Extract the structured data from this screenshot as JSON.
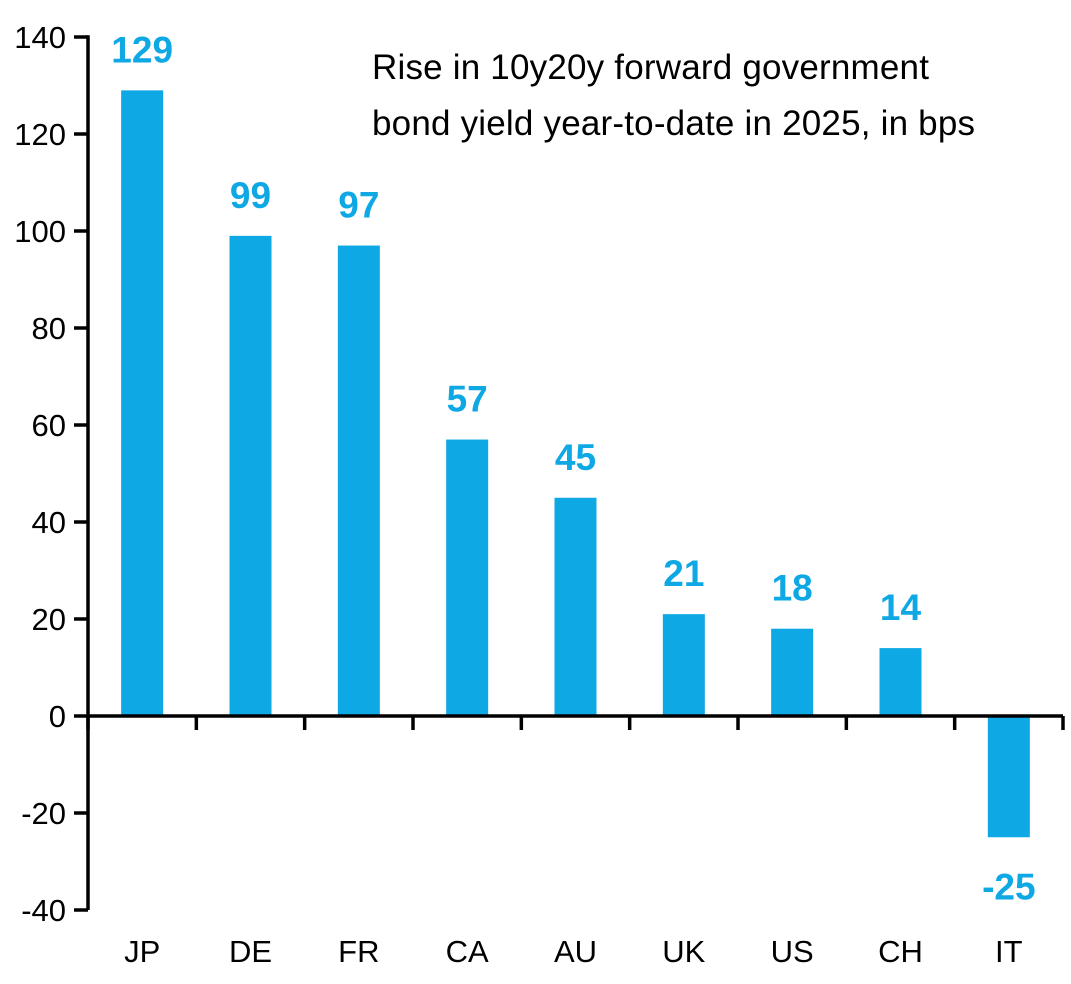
{
  "chart_data": {
    "type": "bar",
    "title": "Rise in 10y20y forward government bond yield year-to-date in 2025, in bps",
    "title_lines": [
      "Rise in 10y20y forward government",
      "bond yield year-to-date in 2025, in bps"
    ],
    "categories": [
      "JP",
      "DE",
      "FR",
      "CA",
      "AU",
      "UK",
      "US",
      "CH",
      "IT"
    ],
    "values": [
      129,
      99,
      97,
      57,
      45,
      21,
      18,
      14,
      -25
    ],
    "value_labels": [
      "129",
      "99",
      "97",
      "57",
      "45",
      "21",
      "18",
      "14",
      "-25"
    ],
    "xlabel": "",
    "ylabel": "",
    "ylim": [
      -40,
      140
    ],
    "yticks": [
      140,
      120,
      100,
      80,
      60,
      40,
      20,
      0,
      -20,
      -40
    ],
    "grid": false,
    "legend": false,
    "colors": {
      "bar": "#0EA8E4",
      "value_label": "#0EA8E4",
      "axis": "#000000",
      "tick_text": "#000000",
      "title_text": "#000000",
      "background": "#FFFFFF"
    }
  }
}
